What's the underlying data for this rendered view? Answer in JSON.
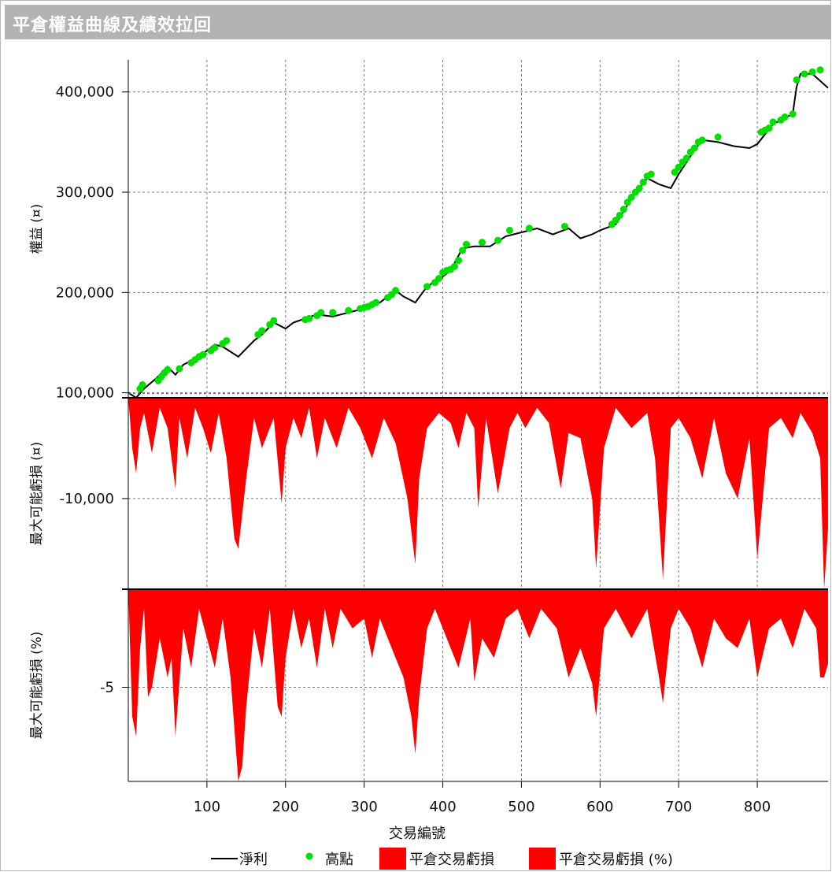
{
  "window": {
    "title": "平倉權益曲線及績效拉回"
  },
  "chart_data": [
    {
      "type": "line",
      "panel": "equity",
      "ylabel": "權益 (¤)",
      "xlim": [
        0,
        890
      ],
      "ylim": [
        95000,
        432000
      ],
      "y_ticks": [
        100000,
        200000,
        300000,
        400000
      ],
      "y_tick_labels": [
        "100,000",
        "200,000",
        "300,000",
        "400,000"
      ],
      "grid": true,
      "series": [
        {
          "name": "淨利",
          "color": "#000000",
          "x": [
            0,
            10,
            20,
            35,
            50,
            60,
            70,
            90,
            110,
            120,
            140,
            160,
            170,
            185,
            200,
            210,
            240,
            260,
            280,
            300,
            320,
            340,
            350,
            365,
            380,
            400,
            410,
            425,
            440,
            460,
            480,
            500,
            520,
            540,
            560,
            575,
            590,
            600,
            620,
            640,
            660,
            675,
            690,
            700,
            720,
            730,
            750,
            770,
            790,
            800,
            820,
            845,
            850,
            855,
            870,
            890
          ],
          "y": [
            100000,
            95000,
            104000,
            114000,
            126000,
            118000,
            128000,
            136000,
            148000,
            146000,
            136000,
            152000,
            158000,
            170000,
            164000,
            170000,
            178000,
            176000,
            180000,
            184000,
            190000,
            202000,
            196000,
            190000,
            206000,
            216000,
            222000,
            244000,
            246000,
            246000,
            256000,
            260000,
            264000,
            258000,
            264000,
            254000,
            258000,
            262000,
            268000,
            294000,
            314000,
            308000,
            304000,
            318000,
            342000,
            352000,
            350000,
            346000,
            344000,
            348000,
            368000,
            378000,
            405000,
            418000,
            418000,
            404000
          ]
        },
        {
          "name": "高點",
          "color": "#00e000",
          "x": [
            15,
            18,
            38,
            42,
            46,
            50,
            65,
            80,
            85,
            90,
            95,
            105,
            110,
            120,
            125,
            165,
            170,
            180,
            185,
            225,
            230,
            240,
            245,
            260,
            280,
            295,
            300,
            305,
            310,
            315,
            330,
            335,
            340,
            380,
            390,
            395,
            400,
            405,
            410,
            415,
            420,
            425,
            430,
            450,
            470,
            485,
            510,
            555,
            615,
            620,
            625,
            630,
            635,
            640,
            645,
            650,
            655,
            660,
            665,
            695,
            700,
            705,
            710,
            715,
            720,
            725,
            730,
            750,
            805,
            810,
            815,
            820,
            830,
            835,
            845,
            850,
            860,
            870,
            880
          ],
          "y": [
            104000,
            108000,
            112000,
            116000,
            120000,
            123000,
            124000,
            130000,
            133000,
            136000,
            138000,
            142000,
            145000,
            149000,
            152000,
            158000,
            162000,
            168000,
            172000,
            173000,
            174000,
            177000,
            180000,
            180000,
            182000,
            184000,
            185000,
            186000,
            188000,
            190000,
            195000,
            198000,
            202000,
            206000,
            210000,
            214000,
            220000,
            222000,
            223000,
            226000,
            232000,
            242000,
            248000,
            250000,
            252000,
            262000,
            264000,
            266000,
            268000,
            272000,
            277000,
            283000,
            290000,
            295000,
            300000,
            304000,
            310000,
            316000,
            318000,
            320000,
            325000,
            330000,
            334000,
            340000,
            344000,
            350000,
            352000,
            355000,
            360000,
            362000,
            364000,
            370000,
            372000,
            375000,
            378000,
            412000,
            418000,
            420000,
            422000
          ]
        }
      ]
    },
    {
      "type": "area",
      "panel": "drawdown-currency",
      "ylabel": "最大可能虧損 (¤)",
      "xlim": [
        0,
        890
      ],
      "ylim": [
        -19000,
        0
      ],
      "y_ticks": [
        -10000
      ],
      "y_tick_labels": [
        "-10,000"
      ],
      "grid": true,
      "series": [
        {
          "name": "平倉交易虧損",
          "color": "#ff0000",
          "x": [
            0,
            5,
            10,
            15,
            20,
            30,
            40,
            50,
            60,
            65,
            75,
            85,
            95,
            105,
            115,
            125,
            135,
            140,
            150,
            160,
            170,
            185,
            195,
            200,
            210,
            220,
            230,
            240,
            250,
            265,
            280,
            295,
            310,
            325,
            340,
            355,
            365,
            370,
            380,
            395,
            410,
            420,
            430,
            440,
            445,
            455,
            470,
            485,
            495,
            505,
            520,
            535,
            550,
            560,
            575,
            590,
            595,
            605,
            620,
            640,
            660,
            670,
            680,
            690,
            700,
            715,
            730,
            745,
            760,
            775,
            790,
            800,
            815,
            830,
            845,
            855,
            870,
            880,
            885,
            890
          ],
          "y": [
            0,
            -5000,
            -7500,
            -3000,
            -1500,
            -5500,
            -1000,
            -3000,
            -9000,
            -2000,
            -6000,
            -1000,
            -3000,
            -5500,
            -1500,
            -6000,
            -14000,
            -15000,
            -8000,
            -2000,
            -5000,
            -2000,
            -10500,
            -5000,
            -2000,
            -4000,
            -1000,
            -6000,
            -2000,
            -5000,
            -1000,
            -3000,
            -6000,
            -2000,
            -4500,
            -10000,
            -16500,
            -8000,
            -3000,
            -1500,
            -2500,
            -5000,
            -1500,
            -3000,
            -11000,
            -2000,
            -9500,
            -3000,
            -1500,
            -3000,
            -1000,
            -2500,
            -9000,
            -3500,
            -4000,
            -10000,
            -17000,
            -5000,
            -1000,
            -3000,
            -1500,
            -6000,
            -18000,
            -3000,
            -2000,
            -4000,
            -8000,
            -2000,
            -7500,
            -10000,
            -4000,
            -16000,
            -3000,
            -2000,
            -4000,
            -1500,
            -3500,
            -6000,
            -19000,
            -13000
          ]
        }
      ]
    },
    {
      "type": "area",
      "panel": "drawdown-percent",
      "ylabel": "最大可能虧損 (%)",
      "xlim": [
        0,
        890
      ],
      "ylim": [
        -9.8,
        0
      ],
      "y_ticks": [
        -5
      ],
      "y_tick_labels": [
        "-5"
      ],
      "grid": true,
      "series": [
        {
          "name": "平倉交易虧損 (%)",
          "color": "#ff0000",
          "x": [
            0,
            5,
            10,
            15,
            20,
            25,
            30,
            40,
            50,
            55,
            60,
            70,
            80,
            90,
            100,
            110,
            120,
            130,
            140,
            145,
            150,
            160,
            170,
            180,
            190,
            195,
            200,
            210,
            220,
            230,
            240,
            250,
            260,
            270,
            285,
            300,
            310,
            320,
            335,
            350,
            360,
            365,
            370,
            380,
            390,
            405,
            420,
            435,
            440,
            450,
            465,
            480,
            495,
            510,
            525,
            545,
            560,
            575,
            590,
            595,
            605,
            620,
            640,
            660,
            675,
            680,
            690,
            700,
            715,
            730,
            745,
            760,
            775,
            790,
            800,
            815,
            830,
            845,
            860,
            875,
            880,
            885,
            890
          ],
          "y": [
            0,
            -6500,
            -7500,
            -3000,
            -1000,
            -5500,
            -5000,
            -2500,
            -4500,
            -3500,
            -7500,
            -2000,
            -4000,
            -1000,
            -2500,
            -4000,
            -1500,
            -4500,
            -9800,
            -9000,
            -6000,
            -2000,
            -4000,
            -1000,
            -6000,
            -6500,
            -3500,
            -1000,
            -3000,
            -1500,
            -4000,
            -1000,
            -3000,
            -1000,
            -2000,
            -1500,
            -3500,
            -1500,
            -3000,
            -4500,
            -6500,
            -8400,
            -5500,
            -2000,
            -1000,
            -2500,
            -4000,
            -1500,
            -4700,
            -2500,
            -3500,
            -1500,
            -1000,
            -2500,
            -1000,
            -2000,
            -4500,
            -3000,
            -4800,
            -6500,
            -2000,
            -1000,
            -2500,
            -1000,
            -4500,
            -5800,
            -2000,
            -1000,
            -2000,
            -4000,
            -1500,
            -2500,
            -3000,
            -1500,
            -4500,
            -2000,
            -1500,
            -3000,
            -1000,
            -2000,
            -4500,
            -4500,
            -3800
          ]
        }
      ]
    }
  ],
  "x_axis": {
    "label": "交易編號",
    "ticks": [
      100,
      200,
      300,
      400,
      500,
      600,
      700,
      800
    ],
    "tick_labels": [
      "100",
      "200",
      "300",
      "400",
      "500",
      "600",
      "700",
      "800"
    ]
  },
  "legend": {
    "placement": "bottom",
    "items": [
      {
        "label": "淨利",
        "kind": "line",
        "color": "#000000"
      },
      {
        "label": "高點",
        "kind": "dot",
        "color": "#00e000"
      },
      {
        "label": "平倉交易虧損",
        "kind": "box",
        "color": "#ff0000"
      },
      {
        "label": "平倉交易虧損 (%)",
        "kind": "box",
        "color": "#ff0000"
      }
    ]
  }
}
